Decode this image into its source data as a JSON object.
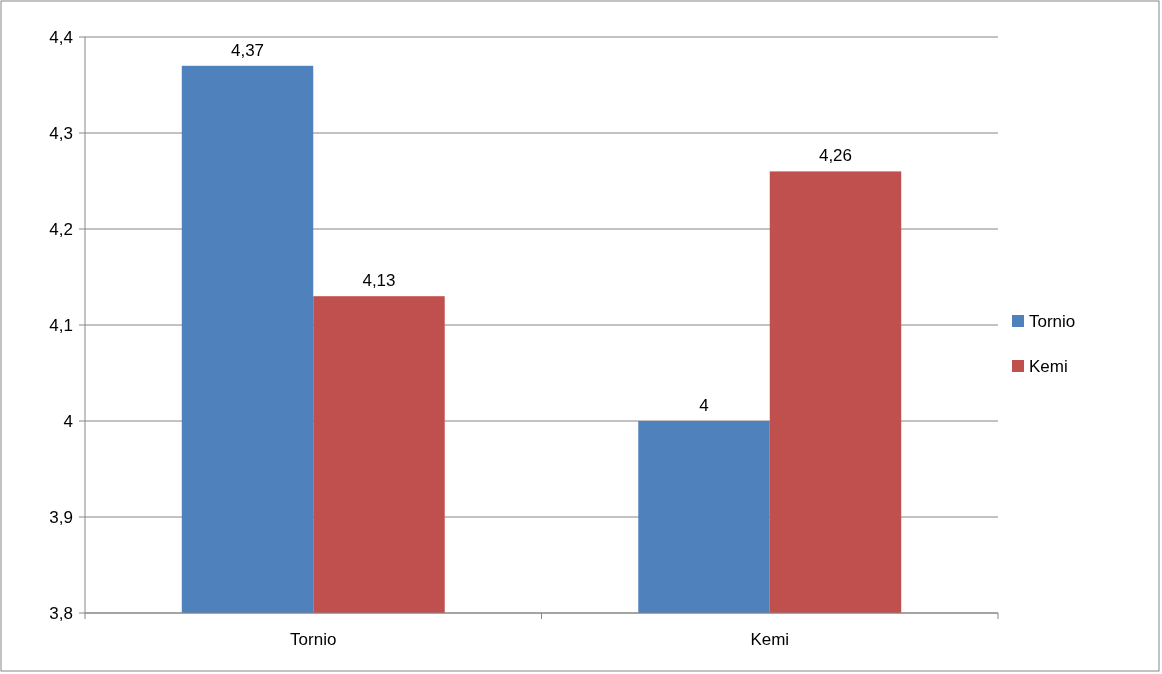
{
  "chart_data": {
    "type": "bar",
    "categories": [
      "Tornio",
      "Kemi"
    ],
    "series": [
      {
        "name": "Tornio",
        "color": "#4f81bd",
        "values": [
          4.37,
          4
        ],
        "value_labels": [
          "4,37",
          "4"
        ]
      },
      {
        "name": "Kemi",
        "color": "#c0504d",
        "values": [
          4.13,
          4.26
        ],
        "value_labels": [
          "4,13",
          "4,26"
        ]
      }
    ],
    "ylim": [
      3.8,
      4.4
    ],
    "yticks": [
      {
        "value": 3.8,
        "label": "3,8"
      },
      {
        "value": 3.9,
        "label": "3,9"
      },
      {
        "value": 4,
        "label": "4"
      },
      {
        "value": 4.1,
        "label": "4,1"
      },
      {
        "value": 4.2,
        "label": "4,2"
      },
      {
        "value": 4.3,
        "label": "4,3"
      },
      {
        "value": 4.4,
        "label": "4,4"
      }
    ],
    "grid": "y",
    "legend": "right"
  }
}
